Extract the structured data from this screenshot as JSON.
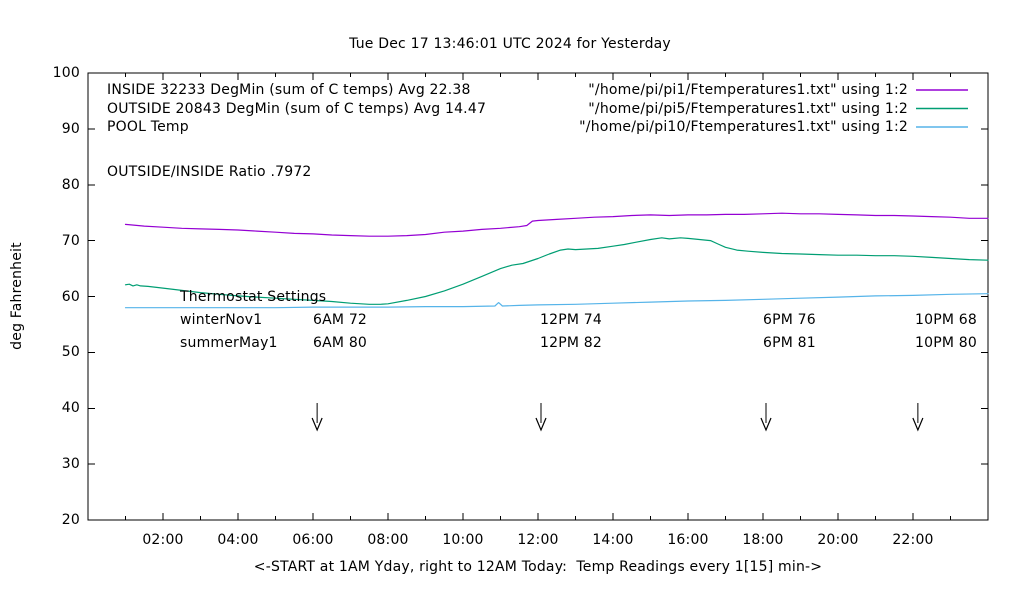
{
  "title": "Tue Dec 17 13:46:01 UTC 2024 for Yesterday",
  "ylabel": "deg Fahrenheit",
  "xlabel": "<-START at 1AM Yday, right to 12AM Today:  Temp Readings every 1[15] min->",
  "ratio_label": "OUTSIDE/INSIDE Ratio .7972",
  "legend": {
    "rows": [
      {
        "left": "INSIDE 32233 DegMin (sum of C temps) Avg 22.38",
        "right": "\"/home/pi/pi1/Ftemperatures1.txt\" using 1:2",
        "color": "#9400D3"
      },
      {
        "left": "OUTSIDE 20843 DegMin (sum of C temps) Avg 14.47",
        "right": "\"/home/pi/pi5/Ftemperatures1.txt\" using 1:2",
        "color": "#009E73"
      },
      {
        "left": "POOL Temp",
        "right": "\"/home/pi/pi10/Ftemperatures1.txt\" using 1:2",
        "color": "#56B4E9"
      }
    ]
  },
  "thermostat": {
    "heading": "Thermostat Settings",
    "rows": [
      {
        "name": "winterNov1",
        "settings": [
          "6AM 72",
          "12PM 74",
          "6PM 76",
          "10PM 68"
        ]
      },
      {
        "name": "summerMay1",
        "settings": [
          "6AM 80",
          "12PM 82",
          "6PM 81",
          "10PM 80"
        ]
      }
    ]
  },
  "chart_data": {
    "type": "line",
    "title": "Tue Dec 17 13:46:01 UTC 2024 for Yesterday",
    "xlabel": "<-START at 1AM Yday, right to 12AM Today:  Temp Readings every 1[15] min->",
    "ylabel": "deg Fahrenheit",
    "xlim": [
      0,
      24
    ],
    "ylim": [
      20,
      100
    ],
    "grid": false,
    "legend_position": "top",
    "yticks": [
      20,
      30,
      40,
      50,
      60,
      70,
      80,
      90,
      100
    ],
    "xticks": [
      {
        "h": 2,
        "label": "02:00"
      },
      {
        "h": 4,
        "label": "04:00"
      },
      {
        "h": 6,
        "label": "06:00"
      },
      {
        "h": 8,
        "label": "08:00"
      },
      {
        "h": 10,
        "label": "10:00"
      },
      {
        "h": 12,
        "label": "12:00"
      },
      {
        "h": 14,
        "label": "14:00"
      },
      {
        "h": 16,
        "label": "16:00"
      },
      {
        "h": 18,
        "label": "18:00"
      },
      {
        "h": 20,
        "label": "20:00"
      },
      {
        "h": 22,
        "label": "22:00"
      }
    ],
    "minor_xticks": [
      1,
      3,
      5,
      7,
      9,
      11,
      13,
      15,
      17,
      19,
      21,
      23
    ],
    "series": [
      {
        "name": "INSIDE",
        "color": "#9400D3",
        "points": [
          [
            1,
            72.9
          ],
          [
            1.5,
            72.6
          ],
          [
            2,
            72.4
          ],
          [
            2.5,
            72.2
          ],
          [
            3,
            72.1
          ],
          [
            3.5,
            72.0
          ],
          [
            4,
            71.9
          ],
          [
            4.5,
            71.7
          ],
          [
            5,
            71.5
          ],
          [
            5.5,
            71.3
          ],
          [
            6,
            71.2
          ],
          [
            6.5,
            71.0
          ],
          [
            7,
            70.9
          ],
          [
            7.5,
            70.8
          ],
          [
            8,
            70.8
          ],
          [
            8.5,
            70.9
          ],
          [
            9,
            71.1
          ],
          [
            9.5,
            71.5
          ],
          [
            10,
            71.7
          ],
          [
            10.5,
            72.0
          ],
          [
            11,
            72.2
          ],
          [
            11.5,
            72.5
          ],
          [
            11.7,
            72.7
          ],
          [
            11.85,
            73.5
          ],
          [
            12,
            73.6
          ],
          [
            12.5,
            73.8
          ],
          [
            13,
            74.0
          ],
          [
            13.5,
            74.2
          ],
          [
            14,
            74.3
          ],
          [
            14.5,
            74.5
          ],
          [
            15,
            74.6
          ],
          [
            15.5,
            74.5
          ],
          [
            16,
            74.6
          ],
          [
            16.5,
            74.6
          ],
          [
            17,
            74.7
          ],
          [
            17.5,
            74.7
          ],
          [
            18,
            74.8
          ],
          [
            18.5,
            74.9
          ],
          [
            19,
            74.8
          ],
          [
            19.5,
            74.8
          ],
          [
            20,
            74.7
          ],
          [
            20.5,
            74.6
          ],
          [
            21,
            74.5
          ],
          [
            21.5,
            74.5
          ],
          [
            22,
            74.4
          ],
          [
            22.5,
            74.3
          ],
          [
            23,
            74.2
          ],
          [
            23.5,
            74.0
          ],
          [
            24,
            74.0
          ]
        ]
      },
      {
        "name": "OUTSIDE",
        "color": "#009E73",
        "points": [
          [
            1,
            62.1
          ],
          [
            1.1,
            62.2
          ],
          [
            1.2,
            61.9
          ],
          [
            1.3,
            62.1
          ],
          [
            1.4,
            61.9
          ],
          [
            1.6,
            61.8
          ],
          [
            2,
            61.5
          ],
          [
            2.5,
            61.1
          ],
          [
            3,
            60.7
          ],
          [
            3.5,
            60.4
          ],
          [
            4,
            60.1
          ],
          [
            4.5,
            59.9
          ],
          [
            5,
            59.7
          ],
          [
            5.5,
            59.5
          ],
          [
            6,
            59.3
          ],
          [
            6.5,
            59.1
          ],
          [
            7,
            58.8
          ],
          [
            7.5,
            58.6
          ],
          [
            7.8,
            58.6
          ],
          [
            8,
            58.7
          ],
          [
            8.5,
            59.3
          ],
          [
            9,
            60.0
          ],
          [
            9.5,
            61.0
          ],
          [
            10,
            62.2
          ],
          [
            10.5,
            63.6
          ],
          [
            11,
            65.0
          ],
          [
            11.3,
            65.6
          ],
          [
            11.6,
            65.9
          ],
          [
            12,
            66.8
          ],
          [
            12.3,
            67.6
          ],
          [
            12.6,
            68.3
          ],
          [
            12.8,
            68.5
          ],
          [
            13,
            68.4
          ],
          [
            13.3,
            68.5
          ],
          [
            13.6,
            68.6
          ],
          [
            14,
            69.0
          ],
          [
            14.3,
            69.3
          ],
          [
            14.6,
            69.7
          ],
          [
            15,
            70.2
          ],
          [
            15.3,
            70.5
          ],
          [
            15.5,
            70.3
          ],
          [
            15.8,
            70.5
          ],
          [
            16,
            70.4
          ],
          [
            16.3,
            70.2
          ],
          [
            16.6,
            70.0
          ],
          [
            16.8,
            69.4
          ],
          [
            17,
            68.8
          ],
          [
            17.3,
            68.3
          ],
          [
            17.6,
            68.1
          ],
          [
            18,
            67.9
          ],
          [
            18.5,
            67.7
          ],
          [
            19,
            67.6
          ],
          [
            19.5,
            67.5
          ],
          [
            20,
            67.4
          ],
          [
            20.5,
            67.4
          ],
          [
            21,
            67.3
          ],
          [
            21.5,
            67.3
          ],
          [
            22,
            67.2
          ],
          [
            22.5,
            67.0
          ],
          [
            23,
            66.8
          ],
          [
            23.5,
            66.6
          ],
          [
            24,
            66.5
          ]
        ]
      },
      {
        "name": "POOL",
        "color": "#56B4E9",
        "points": [
          [
            1,
            58.0
          ],
          [
            2,
            58.0
          ],
          [
            3,
            58.0
          ],
          [
            4,
            58.0
          ],
          [
            5,
            58.0
          ],
          [
            6,
            58.1
          ],
          [
            7,
            58.1
          ],
          [
            8,
            58.1
          ],
          [
            9,
            58.2
          ],
          [
            10,
            58.2
          ],
          [
            10.85,
            58.3
          ],
          [
            10.95,
            58.9
          ],
          [
            11.05,
            58.3
          ],
          [
            11.5,
            58.4
          ],
          [
            12,
            58.5
          ],
          [
            13,
            58.6
          ],
          [
            14,
            58.8
          ],
          [
            15,
            59.0
          ],
          [
            16,
            59.2
          ],
          [
            17,
            59.3
          ],
          [
            18,
            59.5
          ],
          [
            19,
            59.7
          ],
          [
            20,
            59.9
          ],
          [
            21,
            60.1
          ],
          [
            22,
            60.2
          ],
          [
            23,
            60.4
          ],
          [
            24,
            60.5
          ]
        ]
      }
    ],
    "annotations": {
      "arrow_hours": [
        6.11,
        12.08,
        18.08,
        22.13
      ],
      "arrow_style": "down-open-head"
    }
  }
}
